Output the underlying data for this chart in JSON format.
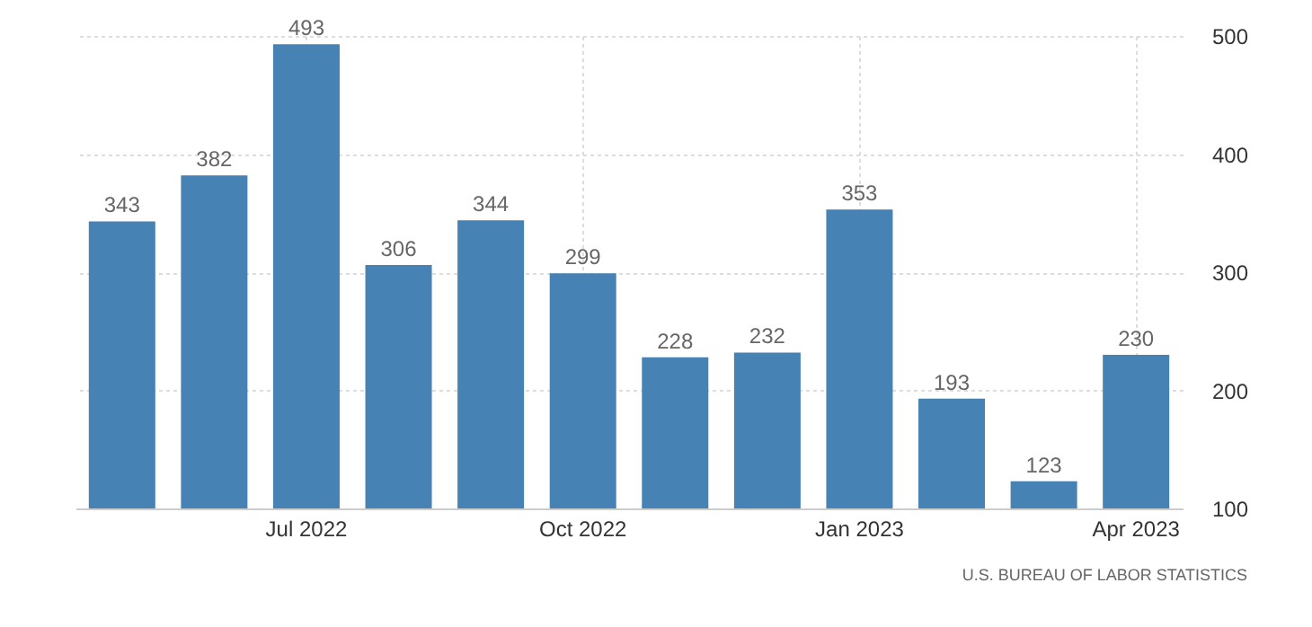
{
  "chart_data": {
    "type": "bar",
    "categories": [
      null,
      null,
      "Jul 2022",
      null,
      null,
      "Oct 2022",
      null,
      null,
      "Jan 2023",
      null,
      null,
      "Apr 2023"
    ],
    "values": [
      343,
      382,
      493,
      306,
      344,
      299,
      228,
      232,
      353,
      193,
      123,
      230
    ],
    "color": "#4682b4",
    "ylim": [
      100,
      500
    ],
    "yticks": [
      100,
      200,
      300,
      400,
      500
    ],
    "grid": true,
    "data_labels": true,
    "annotations": [
      "U.S. BUREAU OF LABOR STATISTICS"
    ]
  }
}
